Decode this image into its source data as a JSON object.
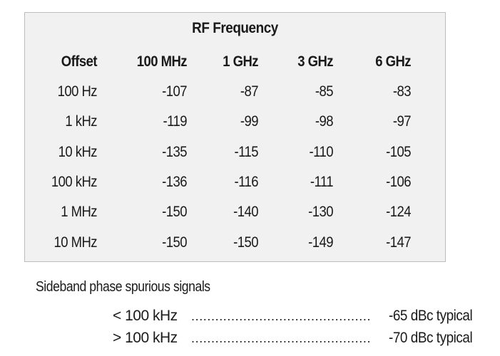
{
  "table": {
    "title": "RF Frequency",
    "headers": [
      "Offset",
      "100 MHz",
      "1 GHz",
      "3 GHz",
      "6 GHz"
    ],
    "rows": [
      [
        "100 Hz",
        "-107",
        "-87",
        "-85",
        "-83"
      ],
      [
        "1 kHz",
        "-119",
        "-99",
        "-98",
        "-97"
      ],
      [
        "10 kHz",
        "-135",
        "-115",
        "-110",
        "-105"
      ],
      [
        "100 kHz",
        "-136",
        "-116",
        "-111",
        "-106"
      ],
      [
        "1 MHz",
        "-150",
        "-140",
        "-130",
        "-124"
      ],
      [
        "10 MHz",
        "-150",
        "-150",
        "-149",
        "-147"
      ]
    ]
  },
  "spurious": {
    "caption": "Sideband phase spurious signals",
    "items": [
      {
        "condition": "< 100 kHz",
        "leader": "....................................................",
        "value": "-65 dBc typical"
      },
      {
        "condition": "> 100 kHz",
        "leader": "....................................................",
        "value": "-70 dBc typical"
      }
    ]
  }
}
